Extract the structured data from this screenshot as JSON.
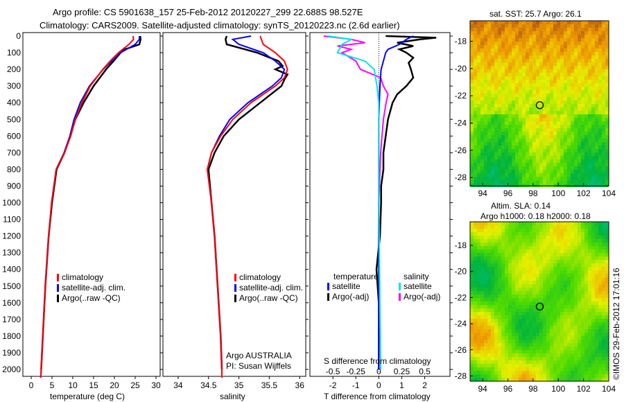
{
  "title_line1": "Argo profile: CS 5901638_157 25-Feb-2012 20120227_299 22.688S 98.527E",
  "title_line2": "Climatology: CARS2009. Satellite-adjusted climatology: synTS_20120223.nc (2.6d earlier)",
  "colors": {
    "climatology": "#ff0000",
    "satellite": "#0000ff",
    "argo": "#000000",
    "sal_satellite": "#00e5e5",
    "sal_argo": "#ff00ff"
  },
  "chart_data": [
    {
      "type": "line",
      "xlabel": "temperature (deg C)",
      "xlim": [
        -2,
        31
      ],
      "ylim": [
        0,
        2050
      ],
      "xticks": [
        "0",
        "5",
        "10",
        "15",
        "20",
        "25",
        "30"
      ],
      "xtick_values": [
        0,
        5,
        10,
        15,
        20,
        25,
        30
      ],
      "yticks": [
        "0",
        "100",
        "200",
        "300",
        "400",
        "500",
        "600",
        "700",
        "800",
        "900",
        "1000",
        "1100",
        "1200",
        "1300",
        "1400",
        "1500",
        "1600",
        "1700",
        "1800",
        "1900",
        "2000"
      ],
      "legend": [
        "climatology",
        "satellite-adj. clim.",
        "Argo(..raw -QC)"
      ],
      "series": [
        {
          "name": "climatology",
          "depth": [
            0,
            20,
            50,
            100,
            150,
            200,
            300,
            400,
            500,
            600,
            700,
            800,
            1000,
            1200,
            1500,
            1800,
            2000,
            2050
          ],
          "values": [
            24.5,
            24.6,
            23.5,
            21,
            19,
            17.2,
            14.2,
            12.2,
            10.6,
            9.5,
            8,
            6,
            4.9,
            4.2,
            3.4,
            2.8,
            2.4,
            2.3
          ]
        },
        {
          "name": "satellite-adj. clim.",
          "depth": [
            0,
            20,
            50,
            100,
            150,
            200,
            300,
            400,
            500,
            600,
            700,
            800,
            1000,
            1200,
            1500,
            1800,
            2000,
            2050
          ],
          "values": [
            26,
            26,
            25,
            21.5,
            19.3,
            17.3,
            14,
            11.8,
            10.3,
            9.3,
            7.9,
            6,
            4.9,
            4.2,
            3.4,
            2.8,
            2.4,
            2.3
          ]
        },
        {
          "name": "Argo(..raw -QC)",
          "depth": [
            0,
            20,
            50,
            80,
            100,
            150,
            200,
            300,
            400,
            500,
            600,
            700,
            800,
            1000,
            1200,
            1500,
            1800,
            2000
          ],
          "values": [
            26.2,
            26.3,
            26,
            22.5,
            21.5,
            19.8,
            18,
            15,
            12.6,
            10.6,
            9.4,
            8,
            6.1,
            5,
            4.2,
            3.4,
            2.8,
            2.4
          ]
        }
      ]
    },
    {
      "type": "line",
      "xlabel": "salinity",
      "xlim": [
        33.75,
        36.1
      ],
      "ylim": [
        0,
        2050
      ],
      "xticks": [
        "34",
        "34.5",
        "35",
        "35.5",
        "36"
      ],
      "xtick_values": [
        34,
        34.5,
        35,
        35.5,
        36
      ],
      "legend": [
        "climatology",
        "satellite-adj. clim.",
        "Argo(..raw -QC)"
      ],
      "annotation": [
        "Argo AUSTRALIA",
        "PI: Susan Wijffels"
      ],
      "series": [
        {
          "name": "climatology",
          "depth": [
            0,
            50,
            100,
            150,
            200,
            250,
            300,
            400,
            500,
            600,
            700,
            800,
            1000,
            1200,
            1500,
            1800,
            2000,
            2050
          ],
          "values": [
            35.35,
            35.4,
            35.6,
            35.75,
            35.8,
            35.75,
            35.6,
            35.2,
            34.9,
            34.7,
            34.55,
            34.48,
            34.55,
            34.6,
            34.65,
            34.7,
            34.72,
            34.72
          ]
        },
        {
          "name": "satellite-adj. clim.",
          "depth": [
            0,
            20,
            50,
            100,
            150,
            200,
            250,
            300,
            400,
            500,
            600,
            700,
            800,
            1000,
            1200,
            1500,
            1800,
            2000,
            2050
          ],
          "values": [
            35.2,
            34.9,
            35,
            35.4,
            35.6,
            35.75,
            35.7,
            35.55,
            35.15,
            34.85,
            34.68,
            34.55,
            34.48,
            34.55,
            34.6,
            34.65,
            34.7,
            34.72,
            34.72
          ]
        },
        {
          "name": "Argo(..raw -QC)",
          "depth": [
            0,
            20,
            50,
            80,
            100,
            150,
            180,
            200,
            230,
            260,
            300,
            400,
            500,
            600,
            700,
            800,
            1000,
            1200,
            1500,
            1800,
            2000
          ],
          "values": [
            34.8,
            34.78,
            34.8,
            35.1,
            35.3,
            35.65,
            35.72,
            35.6,
            35.8,
            35.75,
            35.7,
            35.35,
            35,
            34.75,
            34.6,
            34.5,
            34.55,
            34.6,
            34.65,
            34.7,
            34.72
          ]
        }
      ]
    },
    {
      "type": "line",
      "xlabel": "T difference from climatology",
      "x2label": "S difference from climatology",
      "xlim": [
        -3,
        3.1
      ],
      "ylim": [
        0,
        2050
      ],
      "xticks": [
        "-2",
        "-1",
        "0",
        "1",
        "2"
      ],
      "xtick_values": [
        -2,
        -1,
        0,
        1,
        2
      ],
      "x2ticks": [
        "-0.5",
        "-0.25",
        "0",
        "0.25",
        "0.5"
      ],
      "x2tick_values": [
        -0.5,
        -0.25,
        0,
        0.25,
        0.5
      ],
      "legend_temperature_title": "temperature",
      "legend_salinity_title": "salinity",
      "legend": [
        "satellite",
        "Argo(-adj)",
        "satellite",
        "Argo(-adj)"
      ],
      "series": [
        {
          "name": "temperature satellite",
          "depth": [
            0,
            20,
            50,
            80,
            100,
            150,
            200,
            300,
            500,
            800,
            1000,
            2000
          ],
          "values": [
            1.5,
            1.2,
            0.9,
            0.4,
            0.3,
            0.2,
            0.1,
            0.05,
            0,
            0,
            0,
            0
          ]
        },
        {
          "name": "temperature Argo(-adj)",
          "depth": [
            0,
            10,
            20,
            40,
            60,
            80,
            100,
            130,
            160,
            200,
            250,
            300,
            350,
            400,
            500,
            600,
            700,
            800,
            900,
            1000,
            1200,
            1400,
            1600,
            2000
          ],
          "values": [
            0.3,
            2.5,
            1.8,
            0.8,
            1.5,
            0.9,
            1.2,
            1.5,
            1.3,
            1.4,
            1.5,
            1.2,
            0.8,
            0.6,
            0.4,
            0.3,
            0.2,
            0.2,
            0.1,
            0.1,
            0.05,
            -0.1,
            0,
            0
          ]
        },
        {
          "name": "salinity satellite",
          "depth": [
            0,
            20,
            50,
            100,
            150,
            200,
            300,
            400,
            600,
            1000,
            2000
          ],
          "values": [
            -0.55,
            -0.3,
            -0.4,
            -0.45,
            -0.15,
            -0.05,
            -0.02,
            0,
            0,
            0,
            0.02
          ]
        },
        {
          "name": "salinity Argo(-adj)",
          "depth": [
            0,
            20,
            40,
            60,
            80,
            100,
            150,
            200,
            250,
            300,
            350,
            400,
            500,
            700,
            1000,
            2000
          ],
          "values": [
            -0.6,
            -0.3,
            -0.15,
            -0.45,
            -0.3,
            -0.4,
            -0.25,
            -0.2,
            0.02,
            0.05,
            0.1,
            0.08,
            0.05,
            0.02,
            0,
            0
          ]
        }
      ]
    },
    {
      "type": "heatmap",
      "title": "sat. SST: 25.7 Argo: 26.1",
      "xticks": [
        "94",
        "96",
        "98",
        "100",
        "102",
        "104"
      ],
      "xtick_values": [
        94,
        96,
        98,
        100,
        102,
        104
      ],
      "yticks": [
        "-18",
        "-20",
        "-22",
        "-24",
        "-26",
        "-28"
      ],
      "ytick_values": [
        -18,
        -20,
        -22,
        -24,
        -26,
        -28
      ],
      "xlim": [
        93,
        104
      ],
      "ylim": [
        -28.6,
        -16.5
      ],
      "marker": {
        "lon": 98.527,
        "lat": -22.688
      }
    },
    {
      "type": "heatmap",
      "title_line1": "Altim. SLA: 0.14",
      "title_line2": "Argo h1000: 0.18 h2000: 0.18",
      "xticks": [
        "94",
        "96",
        "98",
        "100",
        "102",
        "104"
      ],
      "xtick_values": [
        94,
        96,
        98,
        100,
        102,
        104
      ],
      "yticks": [
        "-18",
        "-20",
        "-22",
        "-24",
        "-26",
        "-28"
      ],
      "ytick_values": [
        -18,
        -20,
        -22,
        -24,
        -26,
        -28
      ],
      "xlim": [
        93,
        104
      ],
      "ylim": [
        -28.4,
        -16.2
      ],
      "marker": {
        "lon": 98.527,
        "lat": -22.688
      }
    }
  ],
  "credit": "©IMOS 29-Feb-2012 17:01:16"
}
